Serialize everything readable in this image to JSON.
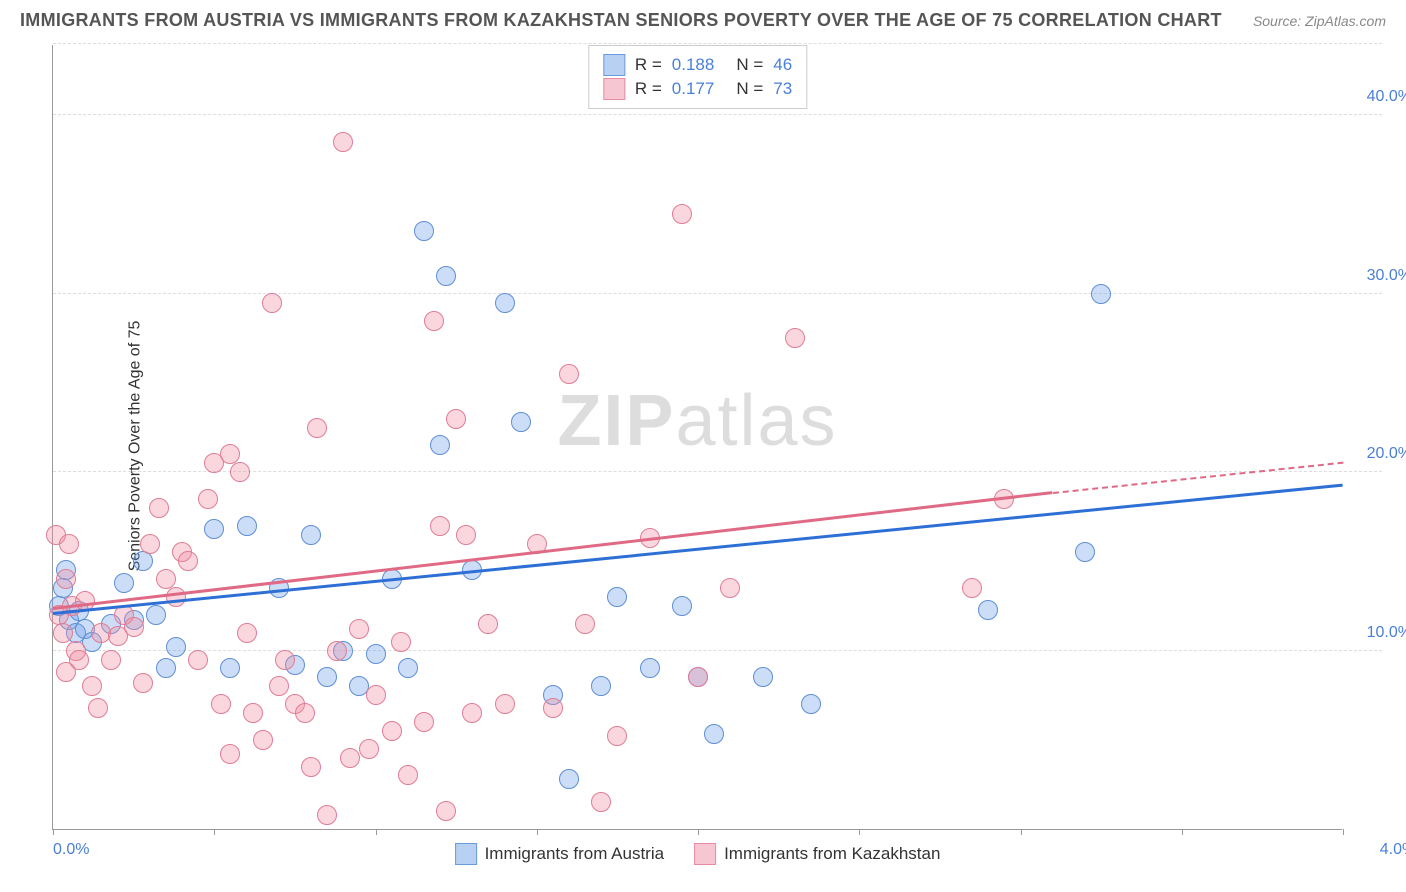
{
  "header": {
    "title": "IMMIGRANTS FROM AUSTRIA VS IMMIGRANTS FROM KAZAKHSTAN SENIORS POVERTY OVER THE AGE OF 75 CORRELATION CHART",
    "source": "Source: ZipAtlas.com"
  },
  "chart": {
    "type": "scatter",
    "y_axis_label": "Seniors Poverty Over the Age of 75",
    "background_color": "#ffffff",
    "grid_color": "#dddddd",
    "axis_color": "#999999",
    "tick_label_color": "#4a7fd8",
    "tick_fontsize": 16,
    "axis_label_fontsize": 16,
    "xlim": [
      0.0,
      4.0
    ],
    "ylim": [
      0.0,
      44.0
    ],
    "x_ticks": [
      0.0,
      0.5,
      1.0,
      1.5,
      2.0,
      2.5,
      3.0,
      3.5,
      4.0
    ],
    "x_tick_labels_shown": {
      "0.0": "0.0%",
      "4.0": "4.0%"
    },
    "y_gridlines": [
      10.0,
      20.0,
      30.0,
      40.0
    ],
    "y_tick_labels": {
      "10.0": "10.0%",
      "20.0": "20.0%",
      "30.0": "30.0%",
      "40.0": "40.0%"
    },
    "watermark": {
      "text_bold": "ZIP",
      "text_rest": "atlas"
    },
    "marker_radius": 10,
    "marker_border_width": 1.5,
    "series": [
      {
        "name": "Immigrants from Austria",
        "fill_color": "rgba(108,159,235,0.35)",
        "stroke_color": "#5e8fd6",
        "swatch_fill": "#b8d0f2",
        "swatch_border": "#6a9be0",
        "trend_color": "#2e6fd6",
        "R": "0.188",
        "N": "46",
        "trend": {
          "x1": 0.0,
          "y1": 12.0,
          "x2": 4.0,
          "y2": 19.2
        },
        "points": [
          [
            0.02,
            12.5
          ],
          [
            0.04,
            14.5
          ],
          [
            0.05,
            11.7
          ],
          [
            0.07,
            11.0
          ],
          [
            0.08,
            12.2
          ],
          [
            0.1,
            11.2
          ],
          [
            0.12,
            10.5
          ],
          [
            0.18,
            11.5
          ],
          [
            0.22,
            13.8
          ],
          [
            0.25,
            11.7
          ],
          [
            0.28,
            15.0
          ],
          [
            0.32,
            12.0
          ],
          [
            0.35,
            9.0
          ],
          [
            0.38,
            10.2
          ],
          [
            0.5,
            16.8
          ],
          [
            0.55,
            9.0
          ],
          [
            0.6,
            17.0
          ],
          [
            0.7,
            13.5
          ],
          [
            0.75,
            9.2
          ],
          [
            0.8,
            16.5
          ],
          [
            0.85,
            8.5
          ],
          [
            0.9,
            10.0
          ],
          [
            0.95,
            8.0
          ],
          [
            1.0,
            9.8
          ],
          [
            1.05,
            14.0
          ],
          [
            1.1,
            9.0
          ],
          [
            1.15,
            33.5
          ],
          [
            1.2,
            21.5
          ],
          [
            1.22,
            31.0
          ],
          [
            1.3,
            14.5
          ],
          [
            1.4,
            29.5
          ],
          [
            1.45,
            22.8
          ],
          [
            1.55,
            7.5
          ],
          [
            1.6,
            2.8
          ],
          [
            1.7,
            8.0
          ],
          [
            1.75,
            13.0
          ],
          [
            1.85,
            9.0
          ],
          [
            1.95,
            12.5
          ],
          [
            2.0,
            8.5
          ],
          [
            2.05,
            5.3
          ],
          [
            2.2,
            8.5
          ],
          [
            2.35,
            7.0
          ],
          [
            2.9,
            12.3
          ],
          [
            3.2,
            15.5
          ],
          [
            3.25,
            30.0
          ],
          [
            0.03,
            13.5
          ]
        ]
      },
      {
        "name": "Immigrants from Kazakhstan",
        "fill_color": "rgba(240,140,160,0.35)",
        "stroke_color": "#e07d95",
        "swatch_fill": "#f6c6d2",
        "swatch_border": "#e88ca2",
        "trend_color": "#e06a85",
        "R": "0.177",
        "N": "73",
        "trend_solid": {
          "x1": 0.0,
          "y1": 12.3,
          "x2": 3.1,
          "y2": 18.8
        },
        "trend_dashed": {
          "x1": 3.1,
          "y1": 18.8,
          "x2": 4.0,
          "y2": 20.5
        },
        "points": [
          [
            0.01,
            16.5
          ],
          [
            0.02,
            12.0
          ],
          [
            0.03,
            11.0
          ],
          [
            0.04,
            14.0
          ],
          [
            0.05,
            16.0
          ],
          [
            0.06,
            12.5
          ],
          [
            0.07,
            10.0
          ],
          [
            0.08,
            9.5
          ],
          [
            0.1,
            12.8
          ],
          [
            0.12,
            8.0
          ],
          [
            0.15,
            11.0
          ],
          [
            0.18,
            9.5
          ],
          [
            0.2,
            10.8
          ],
          [
            0.22,
            12.0
          ],
          [
            0.25,
            11.3
          ],
          [
            0.28,
            8.2
          ],
          [
            0.3,
            16.0
          ],
          [
            0.33,
            18.0
          ],
          [
            0.35,
            14.0
          ],
          [
            0.38,
            13.0
          ],
          [
            0.4,
            15.5
          ],
          [
            0.42,
            15.0
          ],
          [
            0.45,
            9.5
          ],
          [
            0.48,
            18.5
          ],
          [
            0.5,
            20.5
          ],
          [
            0.52,
            7.0
          ],
          [
            0.55,
            21.0
          ],
          [
            0.58,
            20.0
          ],
          [
            0.6,
            11.0
          ],
          [
            0.62,
            6.5
          ],
          [
            0.65,
            5.0
          ],
          [
            0.68,
            29.5
          ],
          [
            0.7,
            8.0
          ],
          [
            0.72,
            9.5
          ],
          [
            0.75,
            7.0
          ],
          [
            0.78,
            6.5
          ],
          [
            0.8,
            3.5
          ],
          [
            0.82,
            22.5
          ],
          [
            0.85,
            0.8
          ],
          [
            0.88,
            10.0
          ],
          [
            0.9,
            38.5
          ],
          [
            0.92,
            4.0
          ],
          [
            0.95,
            11.2
          ],
          [
            0.98,
            4.5
          ],
          [
            1.0,
            7.5
          ],
          [
            1.05,
            5.5
          ],
          [
            1.08,
            10.5
          ],
          [
            1.1,
            3.0
          ],
          [
            1.15,
            6.0
          ],
          [
            1.18,
            28.5
          ],
          [
            1.2,
            17.0
          ],
          [
            1.22,
            1.0
          ],
          [
            1.25,
            23.0
          ],
          [
            1.28,
            16.5
          ],
          [
            1.3,
            6.5
          ],
          [
            1.35,
            11.5
          ],
          [
            1.4,
            7.0
          ],
          [
            1.5,
            16.0
          ],
          [
            1.55,
            6.8
          ],
          [
            1.6,
            25.5
          ],
          [
            1.65,
            11.5
          ],
          [
            1.7,
            1.5
          ],
          [
            1.75,
            5.2
          ],
          [
            1.85,
            16.3
          ],
          [
            1.95,
            34.5
          ],
          [
            2.0,
            8.5
          ],
          [
            2.1,
            13.5
          ],
          [
            2.3,
            27.5
          ],
          [
            2.85,
            13.5
          ],
          [
            2.95,
            18.5
          ],
          [
            0.04,
            8.8
          ],
          [
            0.14,
            6.8
          ],
          [
            0.55,
            4.2
          ]
        ]
      }
    ]
  },
  "legend_bottom": [
    {
      "swatch_fill": "#b8d0f2",
      "swatch_border": "#6a9be0",
      "label": "Immigrants from Austria"
    },
    {
      "swatch_fill": "#f6c6d2",
      "swatch_border": "#e88ca2",
      "label": "Immigrants from Kazakhstan"
    }
  ]
}
